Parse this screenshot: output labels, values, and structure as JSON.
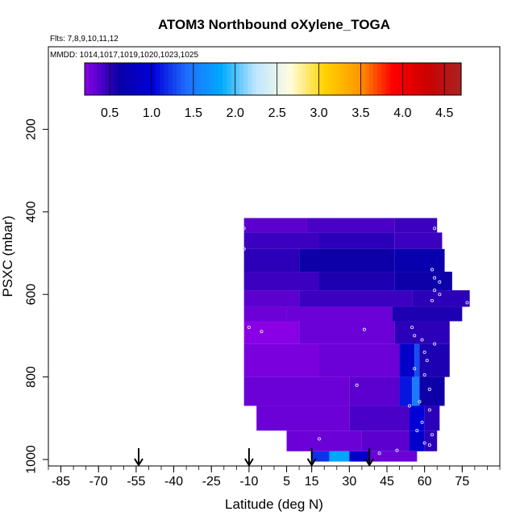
{
  "chart_data": {
    "type": "heatmap",
    "title": "ATOM3 Northbound oXylene_TOGA",
    "subtitle_flights": "Flts: 7,8,9,10,11,12",
    "subtitle_dates": "MMDD: 1014,1017,1019,1020,1023,1025",
    "xlabel": "Latitude (deg N)",
    "ylabel": "PSXC (mbar)",
    "xlim": [
      -90,
      90
    ],
    "ylim": [
      1000,
      0
    ],
    "x_ticks": [
      -85,
      -70,
      -55,
      -40,
      -25,
      -10,
      5,
      15,
      30,
      45,
      60,
      75
    ],
    "x_tick_labels": [
      "-85",
      "-70",
      "-55",
      "-40",
      "-25",
      "-10",
      "5",
      "15",
      "30",
      "45",
      "60",
      "75"
    ],
    "y_ticks": [
      200,
      400,
      600,
      800,
      1000
    ],
    "y_tick_labels": [
      "200",
      "400",
      "600",
      "800",
      "1000"
    ],
    "colorbar": {
      "range": [
        0.2,
        4.7
      ],
      "ticks": [
        0.5,
        1.0,
        1.5,
        2.0,
        2.5,
        3.0,
        3.5,
        4.0,
        4.5
      ],
      "tick_labels": [
        "0.5",
        "1.0",
        "1.5",
        "2.0",
        "2.5",
        "3.0",
        "3.5",
        "4.0",
        "4.5"
      ],
      "colors": [
        "#8a00e6",
        "#0a00a8",
        "#0000d8",
        "#1f6fff",
        "#00aaff",
        "#bfe6ff",
        "#fffde0",
        "#ffd400",
        "#ff9900",
        "#ff0000",
        "#cc0000",
        "#aa2222"
      ]
    },
    "arrows_latitude": [
      -54,
      -10,
      15,
      38
    ],
    "cells": [
      {
        "lat": [
          -12,
          13
        ],
        "p": [
          415,
          450
        ],
        "v": 0.35
      },
      {
        "lat": [
          13,
          48
        ],
        "p": [
          415,
          450
        ],
        "v": 0.4
      },
      {
        "lat": [
          48,
          65
        ],
        "p": [
          415,
          450
        ],
        "v": 0.45
      },
      {
        "lat": [
          -12,
          18
        ],
        "p": [
          450,
          490
        ],
        "v": 0.45
      },
      {
        "lat": [
          18,
          48
        ],
        "p": [
          450,
          490
        ],
        "v": 0.5
      },
      {
        "lat": [
          48,
          67
        ],
        "p": [
          450,
          490
        ],
        "v": 0.45
      },
      {
        "lat": [
          -12,
          10
        ],
        "p": [
          490,
          545
        ],
        "v": 0.5
      },
      {
        "lat": [
          10,
          48
        ],
        "p": [
          490,
          545
        ],
        "v": 0.6
      },
      {
        "lat": [
          48,
          68
        ],
        "p": [
          490,
          545
        ],
        "v": 0.65
      },
      {
        "lat": [
          -12,
          18
        ],
        "p": [
          545,
          590
        ],
        "v": 0.45
      },
      {
        "lat": [
          18,
          48
        ],
        "p": [
          545,
          590
        ],
        "v": 0.55
      },
      {
        "lat": [
          48,
          71
        ],
        "p": [
          545,
          590
        ],
        "v": 0.6
      },
      {
        "lat": [
          -12,
          10
        ],
        "p": [
          590,
          630
        ],
        "v": 0.35
      },
      {
        "lat": [
          10,
          55
        ],
        "p": [
          590,
          630
        ],
        "v": 0.45
      },
      {
        "lat": [
          55,
          78
        ],
        "p": [
          590,
          630
        ],
        "v": 0.5
      },
      {
        "lat": [
          -12,
          5
        ],
        "p": [
          630,
          665
        ],
        "v": 0.3
      },
      {
        "lat": [
          5,
          47
        ],
        "p": [
          630,
          665
        ],
        "v": 0.3
      },
      {
        "lat": [
          47,
          75
        ],
        "p": [
          630,
          665
        ],
        "v": 0.55
      },
      {
        "lat": [
          -12,
          10
        ],
        "p": [
          665,
          720
        ],
        "v": 0.2
      },
      {
        "lat": [
          10,
          48
        ],
        "p": [
          665,
          720
        ],
        "v": 0.3
      },
      {
        "lat": [
          48,
          70
        ],
        "p": [
          665,
          720
        ],
        "v": 0.5
      },
      {
        "lat": [
          -12,
          18
        ],
        "p": [
          720,
          800
        ],
        "v": 0.25
      },
      {
        "lat": [
          18,
          50
        ],
        "p": [
          720,
          800
        ],
        "v": 0.3
      },
      {
        "lat": [
          50,
          56
        ],
        "p": [
          720,
          800
        ],
        "v": 0.9
      },
      {
        "lat": [
          56,
          58
        ],
        "p": [
          720,
          800
        ],
        "v": 1.3
      },
      {
        "lat": [
          58,
          70
        ],
        "p": [
          720,
          800
        ],
        "v": 0.55
      },
      {
        "lat": [
          -12,
          30
        ],
        "p": [
          800,
          870
        ],
        "v": 0.3
      },
      {
        "lat": [
          30,
          50
        ],
        "p": [
          800,
          870
        ],
        "v": 0.35
      },
      {
        "lat": [
          50,
          55
        ],
        "p": [
          800,
          870
        ],
        "v": 1.1
      },
      {
        "lat": [
          55,
          58
        ],
        "p": [
          800,
          870
        ],
        "v": 1.5
      },
      {
        "lat": [
          58,
          68
        ],
        "p": [
          800,
          870
        ],
        "v": 0.6
      },
      {
        "lat": [
          -7,
          30
        ],
        "p": [
          870,
          930
        ],
        "v": 0.3
      },
      {
        "lat": [
          30,
          54
        ],
        "p": [
          870,
          930
        ],
        "v": 0.4
      },
      {
        "lat": [
          54,
          60
        ],
        "p": [
          870,
          930
        ],
        "v": 1.0
      },
      {
        "lat": [
          60,
          66
        ],
        "p": [
          870,
          930
        ],
        "v": 0.5
      },
      {
        "lat": [
          5,
          35
        ],
        "p": [
          930,
          980
        ],
        "v": 0.3
      },
      {
        "lat": [
          35,
          54
        ],
        "p": [
          930,
          980
        ],
        "v": 0.35
      },
      {
        "lat": [
          54,
          60
        ],
        "p": [
          930,
          980
        ],
        "v": 0.9
      },
      {
        "lat": [
          60,
          65
        ],
        "p": [
          930,
          980
        ],
        "v": 0.5
      },
      {
        "lat": [
          15,
          22
        ],
        "p": [
          980,
          1010
        ],
        "v": 1.2
      },
      {
        "lat": [
          22,
          30
        ],
        "p": [
          980,
          1010
        ],
        "v": 1.8
      },
      {
        "lat": [
          30,
          38
        ],
        "p": [
          980,
          1010
        ],
        "v": 0.9
      },
      {
        "lat": [
          38,
          57
        ],
        "p": [
          980,
          1010
        ],
        "v": 0.3
      }
    ],
    "sample_points": [
      [
        -12,
        440
      ],
      [
        -12,
        490
      ],
      [
        64,
        440
      ],
      [
        63,
        540
      ],
      [
        64,
        560
      ],
      [
        66,
        570
      ],
      [
        64,
        590
      ],
      [
        66,
        600
      ],
      [
        63,
        615
      ],
      [
        77,
        620
      ],
      [
        -10,
        680
      ],
      [
        -5,
        690
      ],
      [
        36,
        685
      ],
      [
        55,
        680
      ],
      [
        56,
        700
      ],
      [
        59,
        710
      ],
      [
        64,
        720
      ],
      [
        60,
        740
      ],
      [
        61,
        760
      ],
      [
        56,
        780
      ],
      [
        60,
        795
      ],
      [
        33,
        820
      ],
      [
        62,
        830
      ],
      [
        58,
        860
      ],
      [
        54,
        870
      ],
      [
        62,
        880
      ],
      [
        59,
        910
      ],
      [
        57,
        930
      ],
      [
        63,
        940
      ],
      [
        60,
        960
      ],
      [
        62,
        965
      ],
      [
        18,
        950
      ],
      [
        49,
        978
      ],
      [
        42,
        985
      ]
    ]
  }
}
